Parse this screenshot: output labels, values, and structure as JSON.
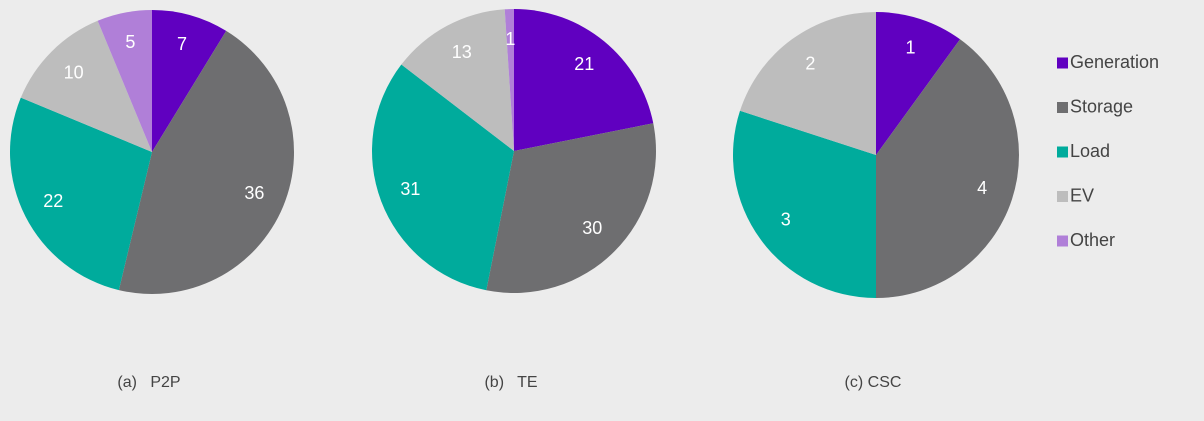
{
  "chart_data": [
    {
      "type": "pie",
      "title": "(a)   P2P",
      "categories": [
        "Generation",
        "Storage",
        "Load",
        "EV",
        "Other"
      ],
      "values": [
        7,
        36,
        22,
        10,
        5
      ],
      "colors": [
        "#6000c0",
        "#6e6e70",
        "#00ab9c",
        "#bdbdbd",
        "#b07fd8"
      ]
    },
    {
      "type": "pie",
      "title": "(b)   TE",
      "categories": [
        "Generation",
        "Storage",
        "Load",
        "EV",
        "Other"
      ],
      "values": [
        21,
        30,
        31,
        13,
        1
      ],
      "colors": [
        "#6000c0",
        "#6e6e70",
        "#00ab9c",
        "#bdbdbd",
        "#b07fd8"
      ]
    },
    {
      "type": "pie",
      "title": "(c) CSC",
      "categories": [
        "Generation",
        "Storage",
        "Load",
        "EV"
      ],
      "values": [
        1,
        4,
        3,
        2
      ],
      "colors": [
        "#6000c0",
        "#6e6e70",
        "#00ab9c",
        "#bdbdbd"
      ]
    }
  ]
}
